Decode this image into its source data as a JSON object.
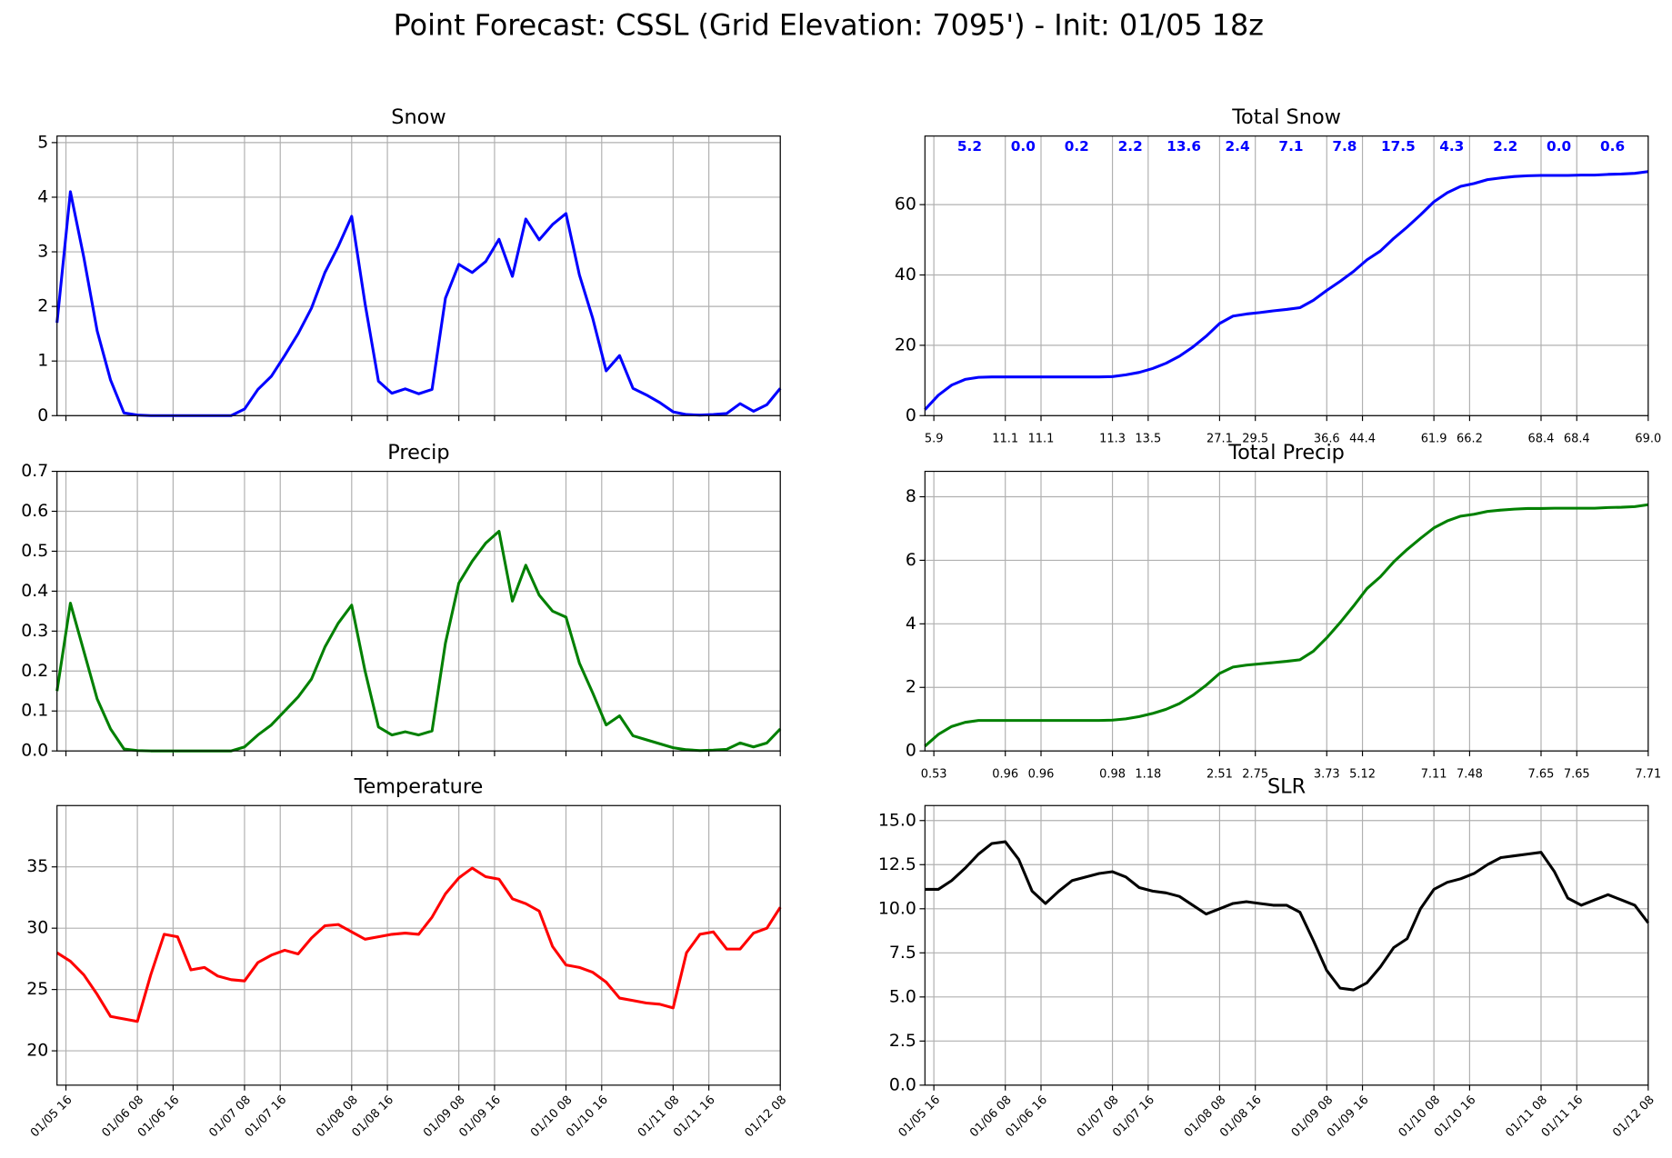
{
  "title": "Point Forecast: CSSL (Grid Elevation: 7095') - Init: 01/05 18z",
  "chart_data": [
    {
      "type": "line",
      "title": "Snow",
      "color": "#0000ff",
      "grid": true,
      "xtick_labels": false,
      "x": [
        "01/05 14",
        "01/05 17",
        "01/05 20",
        "01/05 23",
        "01/06 02",
        "01/06 05",
        "01/06 08",
        "01/06 11",
        "01/06 14",
        "01/06 17",
        "01/06 20",
        "01/06 23",
        "01/07 02",
        "01/07 05",
        "01/07 08",
        "01/07 11",
        "01/07 14",
        "01/07 17",
        "01/07 20",
        "01/07 23",
        "01/08 02",
        "01/08 05",
        "01/08 08",
        "01/08 11",
        "01/08 14",
        "01/08 17",
        "01/08 20",
        "01/08 23",
        "01/09 02",
        "01/09 05",
        "01/09 08",
        "01/09 11",
        "01/09 14",
        "01/09 17",
        "01/09 20",
        "01/09 23",
        "01/10 02",
        "01/10 05",
        "01/10 08",
        "01/10 11",
        "01/10 14",
        "01/10 17",
        "01/10 20",
        "01/10 23",
        "01/11 02",
        "01/11 05",
        "01/11 08",
        "01/11 11",
        "01/11 14",
        "01/11 17",
        "01/11 20",
        "01/11 23",
        "01/12 02",
        "01/12 05",
        "01/12 08"
      ],
      "values": [
        1.7,
        4.1,
        2.9,
        1.55,
        0.65,
        0.05,
        0.01,
        0,
        0,
        0,
        0,
        0,
        0,
        0,
        0.12,
        0.48,
        0.72,
        1.1,
        1.5,
        1.97,
        2.62,
        3.1,
        3.65,
        2.05,
        0.63,
        0.41,
        0.49,
        0.4,
        0.48,
        2.15,
        2.77,
        2.62,
        2.82,
        3.23,
        2.55,
        3.6,
        3.22,
        3.5,
        3.7,
        2.58,
        1.78,
        0.82,
        1.1,
        0.5,
        0.38,
        0.24,
        0.07,
        0.02,
        0.01,
        0.02,
        0.04,
        0.22,
        0.08,
        0.2,
        0.5
      ],
      "xlim": [
        "01/05 14",
        "01/12 08"
      ],
      "xticks": [
        "01/05 16",
        "01/06 08",
        "01/06 16",
        "01/07 08",
        "01/07 16",
        "01/08 08",
        "01/08 16",
        "01/09 08",
        "01/09 16",
        "01/10 08",
        "01/10 16",
        "01/11 08",
        "01/11 16",
        "01/12 08"
      ],
      "ylim": [
        0,
        5.12
      ],
      "yticks": [
        0,
        1,
        2,
        3,
        4,
        5
      ]
    },
    {
      "type": "line",
      "title": "Total Snow",
      "color": "#0000ff",
      "grid": true,
      "x": [
        "01/05 14",
        "01/05 17",
        "01/05 20",
        "01/05 23",
        "01/06 02",
        "01/06 05",
        "01/06 08",
        "01/06 11",
        "01/06 14",
        "01/06 17",
        "01/06 20",
        "01/06 23",
        "01/07 02",
        "01/07 05",
        "01/07 08",
        "01/07 11",
        "01/07 14",
        "01/07 17",
        "01/07 20",
        "01/07 23",
        "01/08 02",
        "01/08 05",
        "01/08 08",
        "01/08 11",
        "01/08 14",
        "01/08 17",
        "01/08 20",
        "01/08 23",
        "01/09 02",
        "01/09 05",
        "01/09 08",
        "01/09 11",
        "01/09 14",
        "01/09 17",
        "01/09 20",
        "01/09 23",
        "01/10 02",
        "01/10 05",
        "01/10 08",
        "01/10 11",
        "01/10 14",
        "01/10 17",
        "01/10 20",
        "01/10 23",
        "01/11 02",
        "01/11 05",
        "01/11 08",
        "01/11 11",
        "01/11 14",
        "01/11 17",
        "01/11 20",
        "01/11 23",
        "01/12 02",
        "01/12 05",
        "01/12 08"
      ],
      "values": [
        1.7,
        5.8,
        8.7,
        10.3,
        10.9,
        11.0,
        11.0,
        11.0,
        11.0,
        11.0,
        11.0,
        11.0,
        11.0,
        11.0,
        11.1,
        11.6,
        12.3,
        13.4,
        14.9,
        16.9,
        19.5,
        22.6,
        26.2,
        28.3,
        28.9,
        29.3,
        29.8,
        30.2,
        30.7,
        32.8,
        35.6,
        38.2,
        41.0,
        44.3,
        46.8,
        50.4,
        53.6,
        57.1,
        60.8,
        63.4,
        65.2,
        66.0,
        67.1,
        67.6,
        68.0,
        68.2,
        68.3,
        68.3,
        68.3,
        68.4,
        68.4,
        68.6,
        68.7,
        68.9,
        69.4
      ],
      "xlim": [
        "01/05 14",
        "01/12 08"
      ],
      "xticks": [
        {
          "value": "01/05 16",
          "label": "5.9"
        },
        {
          "value": "01/06 08",
          "label": "11.1"
        },
        {
          "value": "01/06 16",
          "label": "11.1"
        },
        {
          "value": "01/07 08",
          "label": "11.3"
        },
        {
          "value": "01/07 16",
          "label": "13.5"
        },
        {
          "value": "01/08 08",
          "label": "27.1"
        },
        {
          "value": "01/08 16",
          "label": "29.5"
        },
        {
          "value": "01/09 08",
          "label": "36.6"
        },
        {
          "value": "01/09 16",
          "label": "44.4"
        },
        {
          "value": "01/10 08",
          "label": "61.9"
        },
        {
          "value": "01/10 16",
          "label": "66.2"
        },
        {
          "value": "01/11 08",
          "label": "68.4"
        },
        {
          "value": "01/11 16",
          "label": "68.4"
        },
        {
          "value": "01/12 08",
          "label": "69.0"
        }
      ],
      "ylim": [
        0,
        79.5
      ],
      "yticks": [
        0,
        20,
        40,
        60
      ],
      "period_totals": {
        "color": "#0000ff",
        "x": [
          "01/06 00",
          "01/06 12",
          "01/07 00",
          "01/07 12",
          "01/08 00",
          "01/08 12",
          "01/09 00",
          "01/09 12",
          "01/10 00",
          "01/10 12",
          "01/11 00",
          "01/11 12",
          "01/12 00"
        ],
        "values": [
          5.2,
          0,
          0.2,
          2.2,
          13.6,
          2.4,
          7.1,
          7.8,
          17.5,
          4.3,
          2.2,
          0,
          0.6
        ],
        "value_labels": [
          "5.2",
          "0.0",
          "0.2",
          "2.2",
          "13.6",
          "2.4",
          "7.1",
          "7.8",
          "17.5",
          "4.3",
          "2.2",
          "0.0",
          "0.6"
        ]
      }
    },
    {
      "type": "line",
      "title": "Precip",
      "color": "#008000",
      "grid": true,
      "xtick_labels": false,
      "x": [
        "01/05 14",
        "01/05 17",
        "01/05 20",
        "01/05 23",
        "01/06 02",
        "01/06 05",
        "01/06 08",
        "01/06 11",
        "01/06 14",
        "01/06 17",
        "01/06 20",
        "01/06 23",
        "01/07 02",
        "01/07 05",
        "01/07 08",
        "01/07 11",
        "01/07 14",
        "01/07 17",
        "01/07 20",
        "01/07 23",
        "01/08 02",
        "01/08 05",
        "01/08 08",
        "01/08 11",
        "01/08 14",
        "01/08 17",
        "01/08 20",
        "01/08 23",
        "01/09 02",
        "01/09 05",
        "01/09 08",
        "01/09 11",
        "01/09 14",
        "01/09 17",
        "01/09 20",
        "01/09 23",
        "01/10 02",
        "01/10 05",
        "01/10 08",
        "01/10 11",
        "01/10 14",
        "01/10 17",
        "01/10 20",
        "01/10 23",
        "01/11 02",
        "01/11 05",
        "01/11 08",
        "01/11 11",
        "01/11 14",
        "01/11 17",
        "01/11 20",
        "01/11 23",
        "01/12 02",
        "01/12 05",
        "01/12 08"
      ],
      "values": [
        0.15,
        0.37,
        0.25,
        0.13,
        0.055,
        0.005,
        0.001,
        0,
        0,
        0,
        0,
        0,
        0,
        0,
        0.01,
        0.04,
        0.065,
        0.1,
        0.135,
        0.18,
        0.26,
        0.32,
        0.365,
        0.2,
        0.06,
        0.04,
        0.048,
        0.04,
        0.05,
        0.27,
        0.42,
        0.475,
        0.52,
        0.55,
        0.375,
        0.465,
        0.39,
        0.35,
        0.335,
        0.22,
        0.145,
        0.065,
        0.088,
        0.038,
        0.028,
        0.018,
        0.008,
        0.003,
        0.001,
        0.002,
        0.004,
        0.02,
        0.01,
        0.02,
        0.055
      ],
      "xlim": [
        "01/05 14",
        "01/12 08"
      ],
      "xticks": [
        "01/05 16",
        "01/06 08",
        "01/06 16",
        "01/07 08",
        "01/07 16",
        "01/08 08",
        "01/08 16",
        "01/09 08",
        "01/09 16",
        "01/10 08",
        "01/10 16",
        "01/11 08",
        "01/11 16",
        "01/12 08"
      ],
      "ylim": [
        0,
        0.7
      ],
      "yticks": [
        {
          "value": 0,
          "label": "0.0"
        },
        0.1,
        0.2,
        0.3,
        0.4,
        0.5,
        0.6,
        0.7
      ]
    },
    {
      "type": "line",
      "title": "Total Precip",
      "color": "#008000",
      "grid": true,
      "x": [
        "01/05 14",
        "01/05 17",
        "01/05 20",
        "01/05 23",
        "01/06 02",
        "01/06 05",
        "01/06 08",
        "01/06 11",
        "01/06 14",
        "01/06 17",
        "01/06 20",
        "01/06 23",
        "01/07 02",
        "01/07 05",
        "01/07 08",
        "01/07 11",
        "01/07 14",
        "01/07 17",
        "01/07 20",
        "01/07 23",
        "01/08 02",
        "01/08 05",
        "01/08 08",
        "01/08 11",
        "01/08 14",
        "01/08 17",
        "01/08 20",
        "01/08 23",
        "01/09 02",
        "01/09 05",
        "01/09 08",
        "01/09 11",
        "01/09 14",
        "01/09 17",
        "01/09 20",
        "01/09 23",
        "01/10 02",
        "01/10 05",
        "01/10 08",
        "01/10 11",
        "01/10 14",
        "01/10 17",
        "01/10 20",
        "01/10 23",
        "01/11 02",
        "01/11 05",
        "01/11 08",
        "01/11 11",
        "01/11 14",
        "01/11 17",
        "01/11 20",
        "01/11 23",
        "01/12 02",
        "01/12 05",
        "01/12 08"
      ],
      "values": [
        0.15,
        0.52,
        0.77,
        0.9,
        0.96,
        0.96,
        0.96,
        0.96,
        0.96,
        0.96,
        0.96,
        0.96,
        0.96,
        0.96,
        0.97,
        1.01,
        1.08,
        1.18,
        1.31,
        1.49,
        1.75,
        2.07,
        2.44,
        2.64,
        2.7,
        2.74,
        2.78,
        2.82,
        2.87,
        3.14,
        3.56,
        4.04,
        4.56,
        5.11,
        5.48,
        5.95,
        6.34,
        6.69,
        7.02,
        7.24,
        7.39,
        7.45,
        7.54,
        7.58,
        7.61,
        7.63,
        7.63,
        7.64,
        7.64,
        7.64,
        7.64,
        7.66,
        7.67,
        7.69,
        7.75
      ],
      "xlim": [
        "01/05 14",
        "01/12 08"
      ],
      "xticks": [
        {
          "value": "01/05 16",
          "label": "0.53"
        },
        {
          "value": "01/06 08",
          "label": "0.96"
        },
        {
          "value": "01/06 16",
          "label": "0.96"
        },
        {
          "value": "01/07 08",
          "label": "0.98"
        },
        {
          "value": "01/07 16",
          "label": "1.18"
        },
        {
          "value": "01/08 08",
          "label": "2.51"
        },
        {
          "value": "01/08 16",
          "label": "2.75"
        },
        {
          "value": "01/09 08",
          "label": "3.73"
        },
        {
          "value": "01/09 16",
          "label": "5.12"
        },
        {
          "value": "01/10 08",
          "label": "7.11"
        },
        {
          "value": "01/10 16",
          "label": "7.48"
        },
        {
          "value": "01/11 08",
          "label": "7.65"
        },
        {
          "value": "01/11 16",
          "label": "7.65"
        },
        {
          "value": "01/12 08",
          "label": "7.71"
        }
      ],
      "ylim": [
        0,
        8.8
      ],
      "yticks": [
        0,
        2,
        4,
        6,
        8
      ]
    },
    {
      "type": "line",
      "title": "Temperature",
      "color": "#ff0000",
      "grid": true,
      "x": [
        "01/05 14",
        "01/05 17",
        "01/05 20",
        "01/05 23",
        "01/06 02",
        "01/06 05",
        "01/06 08",
        "01/06 11",
        "01/06 14",
        "01/06 17",
        "01/06 20",
        "01/06 23",
        "01/07 02",
        "01/07 05",
        "01/07 08",
        "01/07 11",
        "01/07 14",
        "01/07 17",
        "01/07 20",
        "01/07 23",
        "01/08 02",
        "01/08 05",
        "01/08 08",
        "01/08 11",
        "01/08 14",
        "01/08 17",
        "01/08 20",
        "01/08 23",
        "01/09 02",
        "01/09 05",
        "01/09 08",
        "01/09 11",
        "01/09 14",
        "01/09 17",
        "01/09 20",
        "01/09 23",
        "01/10 02",
        "01/10 05",
        "01/10 08",
        "01/10 11",
        "01/10 14",
        "01/10 17",
        "01/10 20",
        "01/10 23",
        "01/11 02",
        "01/11 05",
        "01/11 08",
        "01/11 11",
        "01/11 14",
        "01/11 17",
        "01/11 20",
        "01/11 23",
        "01/12 02",
        "01/12 05",
        "01/12 08"
      ],
      "values": [
        28.0,
        27.3,
        26.2,
        24.6,
        22.8,
        22.6,
        22.4,
        26.2,
        29.5,
        29.3,
        26.6,
        26.8,
        26.1,
        25.8,
        25.7,
        27.2,
        27.8,
        28.2,
        27.9,
        29.2,
        30.2,
        30.3,
        29.7,
        29.1,
        29.3,
        29.5,
        29.6,
        29.5,
        30.9,
        32.8,
        34.1,
        34.9,
        34.2,
        34.0,
        32.4,
        32.0,
        31.4,
        28.5,
        27.0,
        26.8,
        26.4,
        25.6,
        24.3,
        24.1,
        23.9,
        23.8,
        23.5,
        28.0,
        29.5,
        29.7,
        28.3,
        28.3,
        29.6,
        30.0,
        31.7
      ],
      "xlim": [
        "01/05 14",
        "01/12 08"
      ],
      "xticks": [
        "01/05 16",
        "01/06 08",
        "01/06 16",
        "01/07 08",
        "01/07 16",
        "01/08 08",
        "01/08 16",
        "01/09 08",
        "01/09 16",
        "01/10 08",
        "01/10 16",
        "01/11 08",
        "01/11 16",
        "01/12 08"
      ],
      "ylim": [
        17.2,
        40
      ],
      "yticks": [
        20,
        25,
        30,
        35
      ]
    },
    {
      "type": "line",
      "title": "SLR",
      "color": "#000000",
      "grid": true,
      "x": [
        "01/05 14",
        "01/05 17",
        "01/05 20",
        "01/05 23",
        "01/06 02",
        "01/06 05",
        "01/06 08",
        "01/06 11",
        "01/06 14",
        "01/06 17",
        "01/06 20",
        "01/06 23",
        "01/07 02",
        "01/07 05",
        "01/07 08",
        "01/07 11",
        "01/07 14",
        "01/07 17",
        "01/07 20",
        "01/07 23",
        "01/08 02",
        "01/08 05",
        "01/08 08",
        "01/08 11",
        "01/08 14",
        "01/08 17",
        "01/08 20",
        "01/08 23",
        "01/09 02",
        "01/09 05",
        "01/09 08",
        "01/09 11",
        "01/09 14",
        "01/09 17",
        "01/09 20",
        "01/09 23",
        "01/10 02",
        "01/10 05",
        "01/10 08",
        "01/10 11",
        "01/10 14",
        "01/10 17",
        "01/10 20",
        "01/10 23",
        "01/11 02",
        "01/11 05",
        "01/11 08",
        "01/11 11",
        "01/11 14",
        "01/11 17",
        "01/11 20",
        "01/11 23",
        "01/12 02",
        "01/12 05",
        "01/12 08"
      ],
      "values": [
        11.1,
        11.1,
        11.6,
        12.3,
        13.1,
        13.7,
        13.8,
        12.8,
        11.0,
        10.3,
        11.0,
        11.6,
        11.8,
        12.0,
        12.1,
        11.8,
        11.2,
        11.0,
        10.9,
        10.7,
        10.2,
        9.7,
        10.0,
        10.3,
        10.4,
        10.3,
        10.2,
        10.2,
        9.8,
        8.2,
        6.5,
        5.5,
        5.4,
        5.8,
        6.7,
        7.8,
        8.3,
        10.0,
        11.1,
        11.5,
        11.7,
        12.0,
        12.5,
        12.9,
        13.0,
        13.1,
        13.2,
        12.1,
        10.6,
        10.2,
        10.5,
        10.8,
        10.5,
        10.2,
        9.2
      ],
      "xlim": [
        "01/05 14",
        "01/12 08"
      ],
      "xticks": [
        "01/05 16",
        "01/06 08",
        "01/06 16",
        "01/07 08",
        "01/07 16",
        "01/08 08",
        "01/08 16",
        "01/09 08",
        "01/09 16",
        "01/10 08",
        "01/10 16",
        "01/11 08",
        "01/11 16",
        "01/12 08"
      ],
      "ylim": [
        0,
        15.85
      ],
      "yticks": [
        {
          "value": 0,
          "label": "0.0"
        },
        2.5,
        {
          "value": 5,
          "label": "5.0"
        },
        7.5,
        {
          "value": 10,
          "label": "10.0"
        },
        12.5,
        {
          "value": 15,
          "label": "15.0"
        }
      ]
    }
  ]
}
